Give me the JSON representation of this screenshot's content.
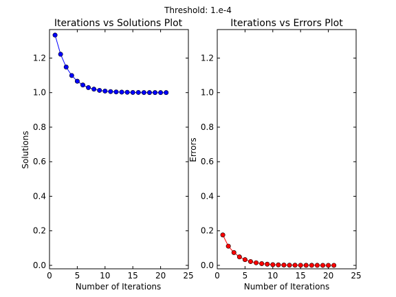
{
  "suptitle": "Threshold: 1.e-4",
  "chart_data": [
    {
      "type": "line",
      "title": "Iterations vs Solutions Plot",
      "xlabel": "Number of Iterations",
      "ylabel": "Solutions",
      "xlim": [
        0,
        25
      ],
      "ylim": [
        -0.02,
        1.365
      ],
      "xticks": [
        "0",
        "5",
        "10",
        "15",
        "20",
        "25"
      ],
      "yticks": [
        "0.0",
        "0.2",
        "0.4",
        "0.6",
        "0.8",
        "1.0",
        "1.2"
      ],
      "grid": false,
      "series": [
        {
          "color": "#0000ff",
          "marker": "circle",
          "x": [
            1,
            2,
            3,
            4,
            5,
            6,
            7,
            8,
            9,
            10,
            11,
            12,
            13,
            14,
            15,
            16,
            17,
            18,
            19,
            20,
            21
          ],
          "y": [
            1.333,
            1.222,
            1.148,
            1.099,
            1.066,
            1.044,
            1.029,
            1.02,
            1.013,
            1.009,
            1.006,
            1.004,
            1.003,
            1.002,
            1.001,
            1.001,
            1.0005,
            1.0003,
            1.0002,
            1.0001,
            1.0001
          ]
        }
      ]
    },
    {
      "type": "line",
      "title": "Iterations vs Errors Plot",
      "xlabel": "Number of Iterations",
      "ylabel": "Errors",
      "xlim": [
        0,
        25
      ],
      "ylim": [
        -0.02,
        1.365
      ],
      "xticks": [
        "0",
        "5",
        "10",
        "15",
        "20",
        "25"
      ],
      "yticks": [
        "0.0",
        "0.2",
        "0.4",
        "0.6",
        "0.8",
        "1.0",
        "1.2"
      ],
      "grid": false,
      "series": [
        {
          "color": "#ff0000",
          "marker": "circle",
          "x": [
            1,
            2,
            3,
            4,
            5,
            6,
            7,
            8,
            9,
            10,
            11,
            12,
            13,
            14,
            15,
            16,
            17,
            18,
            19,
            20,
            21
          ],
          "y": [
            0.176,
            0.111,
            0.074,
            0.049,
            0.033,
            0.022,
            0.015,
            0.01,
            0.007,
            0.004,
            0.003,
            0.002,
            0.001,
            0.001,
            0.0006,
            0.0004,
            0.0003,
            0.0002,
            0.0001,
            0.0001,
            5e-05
          ]
        }
      ]
    }
  ]
}
